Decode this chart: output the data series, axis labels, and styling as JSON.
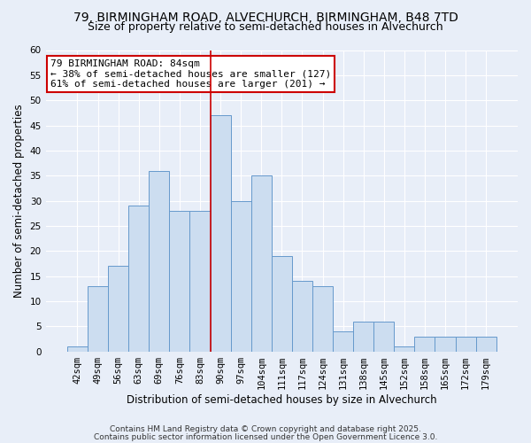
{
  "title_line1": "79, BIRMINGHAM ROAD, ALVECHURCH, BIRMINGHAM, B48 7TD",
  "title_line2": "Size of property relative to semi-detached houses in Alvechurch",
  "xlabel": "Distribution of semi-detached houses by size in Alvechurch",
  "ylabel": "Number of semi-detached properties",
  "categories": [
    "42sqm",
    "49sqm",
    "56sqm",
    "63sqm",
    "69sqm",
    "76sqm",
    "83sqm",
    "90sqm",
    "97sqm",
    "104sqm",
    "111sqm",
    "117sqm",
    "124sqm",
    "131sqm",
    "138sqm",
    "145sqm",
    "152sqm",
    "158sqm",
    "165sqm",
    "172sqm",
    "179sqm"
  ],
  "values": [
    1,
    13,
    17,
    29,
    36,
    28,
    28,
    47,
    30,
    35,
    19,
    14,
    13,
    4,
    6,
    6,
    1,
    3,
    3,
    3,
    3
  ],
  "bar_color": "#ccddf0",
  "bar_edge_color": "#6699cc",
  "vline_x_index": 6,
  "vline_color": "#cc0000",
  "annotation_line1": "79 BIRMINGHAM ROAD: 84sqm",
  "annotation_line2": "← 38% of semi-detached houses are smaller (127)",
  "annotation_line3": "61% of semi-detached houses are larger (201) →",
  "annotation_box_facecolor": "#ffffff",
  "annotation_box_edgecolor": "#cc0000",
  "ylim": [
    0,
    60
  ],
  "yticks": [
    0,
    5,
    10,
    15,
    20,
    25,
    30,
    35,
    40,
    45,
    50,
    55,
    60
  ],
  "footnote1": "Contains HM Land Registry data © Crown copyright and database right 2025.",
  "footnote2": "Contains public sector information licensed under the Open Government Licence 3.0.",
  "background_color": "#e8eef8",
  "plot_bg_color": "#e8eef8",
  "grid_color": "#ffffff",
  "title_fontsize": 10,
  "subtitle_fontsize": 9,
  "axis_label_fontsize": 8.5,
  "tick_fontsize": 7.5,
  "annotation_fontsize": 8,
  "footnote_fontsize": 6.5
}
